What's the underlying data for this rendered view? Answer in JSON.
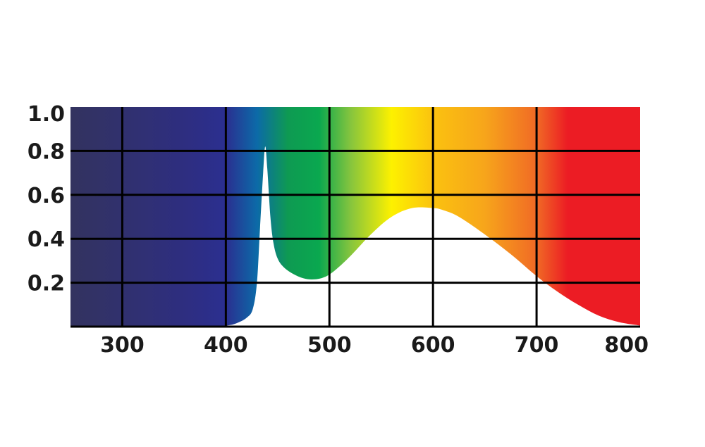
{
  "chart_data": {
    "type": "area",
    "title": "",
    "xlabel": "",
    "ylabel": "",
    "xlim": [
      250,
      800
    ],
    "ylim": [
      0,
      1.0
    ],
    "grid": true,
    "x_ticks": [
      {
        "value": 300,
        "label": "300"
      },
      {
        "value": 400,
        "label": "400"
      },
      {
        "value": 500,
        "label": "500"
      },
      {
        "value": 600,
        "label": "600"
      },
      {
        "value": 700,
        "label": "700"
      },
      {
        "value": 800,
        "label": "800"
      }
    ],
    "y_ticks": [
      {
        "value": 0.2,
        "label": "0.2"
      },
      {
        "value": 0.4,
        "label": "0.4"
      },
      {
        "value": 0.6,
        "label": "0.6"
      },
      {
        "value": 0.8,
        "label": "0.8"
      },
      {
        "value": 1.0,
        "label": "1.0"
      }
    ],
    "series": [
      {
        "fill_color": "#ffffff",
        "x": [
          250,
          380,
          400,
          410,
          420,
          426,
          430,
          433,
          436,
          438,
          440,
          443,
          446,
          450,
          456,
          465,
          475,
          485,
          495,
          505,
          520,
          540,
          560,
          580,
          600,
          610,
          625,
          650,
          675,
          700,
          720,
          740,
          760,
          780,
          800
        ],
        "y": [
          0.0,
          0.0,
          0.005,
          0.015,
          0.04,
          0.08,
          0.2,
          0.45,
          0.7,
          0.82,
          0.72,
          0.5,
          0.38,
          0.31,
          0.27,
          0.24,
          0.22,
          0.215,
          0.225,
          0.255,
          0.32,
          0.42,
          0.5,
          0.54,
          0.54,
          0.53,
          0.5,
          0.42,
          0.33,
          0.23,
          0.16,
          0.1,
          0.05,
          0.02,
          0.005
        ]
      }
    ],
    "background_spectrum": [
      {
        "wavelength": 250,
        "color": "#33335f"
      },
      {
        "wavelength": 360,
        "color": "#2e2e80"
      },
      {
        "wavelength": 400,
        "color": "#2b2f90"
      },
      {
        "wavelength": 430,
        "color": "#0c6aa8"
      },
      {
        "wavelength": 460,
        "color": "#0e9a52"
      },
      {
        "wavelength": 490,
        "color": "#0aa84f"
      },
      {
        "wavelength": 520,
        "color": "#84c43e"
      },
      {
        "wavelength": 560,
        "color": "#fdf100"
      },
      {
        "wavelength": 600,
        "color": "#fbc20f"
      },
      {
        "wavelength": 650,
        "color": "#f7a51b"
      },
      {
        "wavelength": 700,
        "color": "#f06a25"
      },
      {
        "wavelength": 730,
        "color": "#ec1c24"
      },
      {
        "wavelength": 800,
        "color": "#ec1c24"
      }
    ],
    "grid_color": "#000000"
  }
}
